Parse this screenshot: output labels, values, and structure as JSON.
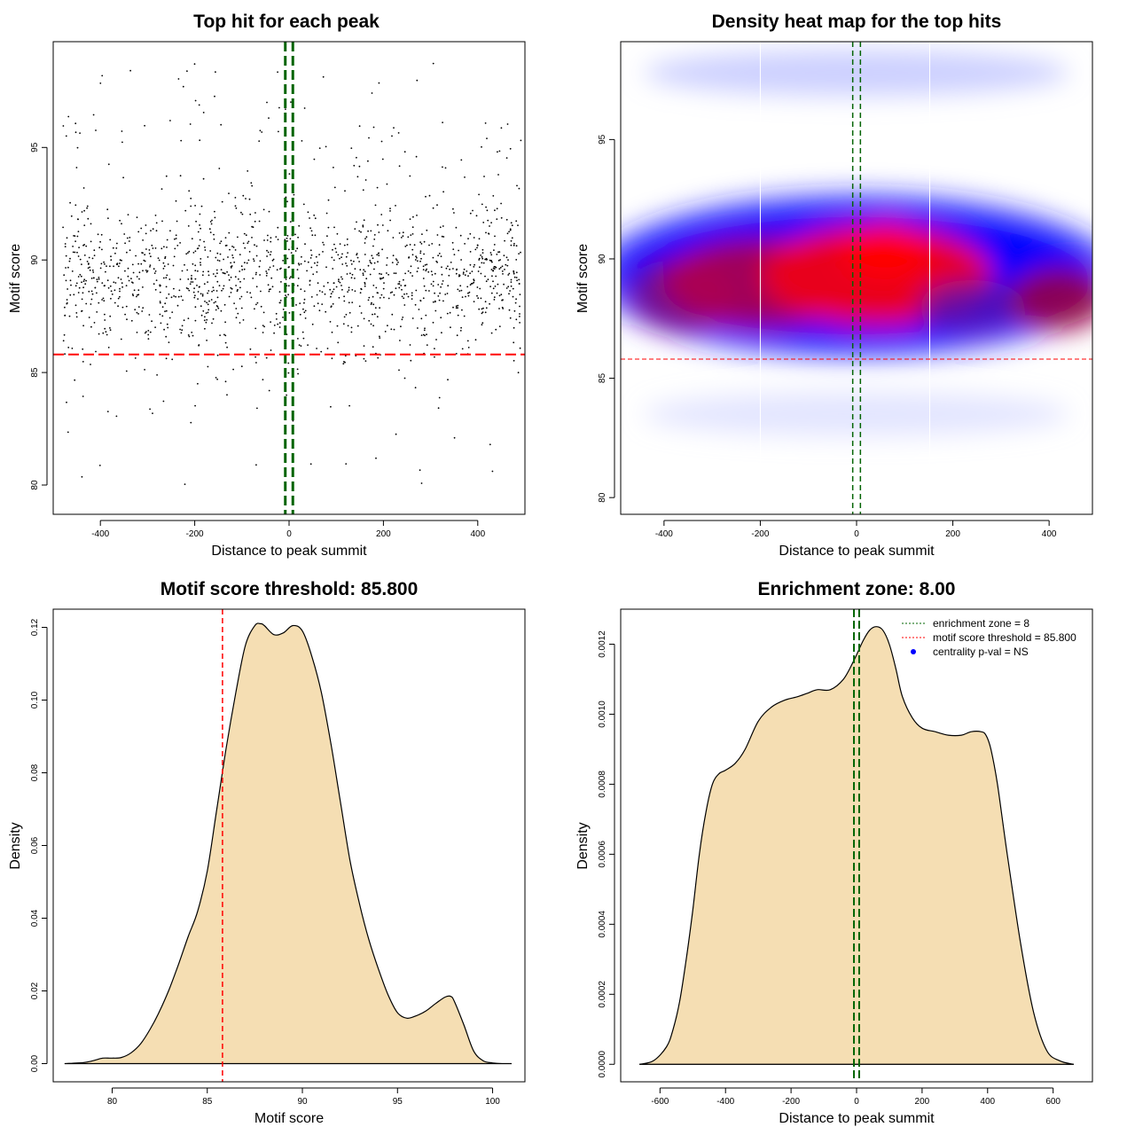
{
  "chart_data": [
    {
      "type": "scatter",
      "title": "Top hit for each peak",
      "xlabel": "Distance to peak summit",
      "ylabel": "Motif score",
      "xlim": [
        -500,
        500
      ],
      "ylim": [
        78.7,
        99.7
      ],
      "xticks": [
        -400,
        -200,
        0,
        200,
        400
      ],
      "yticks": [
        80,
        85,
        90,
        95
      ],
      "vlines": [
        -8,
        8
      ],
      "hline": 85.8,
      "n_points_approx": 1500,
      "colors": {
        "points": "#000000",
        "vlines": "#006400",
        "hline": "#ff0000"
      }
    },
    {
      "type": "heatmap",
      "title": "Density heat map for the top hits",
      "xlabel": "Distance to peak summit",
      "ylabel": "Motif score",
      "xlim": [
        -490,
        490
      ],
      "ylim": [
        79.3,
        99.1
      ],
      "xticks": [
        -400,
        -200,
        0,
        200,
        400
      ],
      "yticks": [
        80,
        85,
        90,
        95
      ],
      "vlines": [
        -8,
        8
      ],
      "hline": 85.8,
      "white_vlines": [
        -200,
        152
      ],
      "colors": {
        "low": "#ffffff",
        "mid": "#0000ff",
        "high": "#ff0000",
        "vlines": "#006400",
        "hline": "#ff0000"
      }
    },
    {
      "type": "area",
      "title": "Motif score threshold: 85.800",
      "xlabel": "Motif score",
      "ylabel": "Density",
      "xlim": [
        76.9,
        101.7
      ],
      "ylim": [
        -0.005,
        0.125
      ],
      "xticks": [
        80,
        85,
        90,
        95,
        100
      ],
      "yticks": [
        0.0,
        0.02,
        0.04,
        0.06,
        0.08,
        0.1,
        0.12
      ],
      "ytick_labels": [
        "0.00",
        "0.02",
        "0.04",
        "0.06",
        "0.08",
        "0.10",
        "0.12"
      ],
      "x": [
        77.5,
        78.5,
        79.0,
        79.5,
        80.0,
        80.5,
        81.0,
        81.5,
        82.0,
        82.5,
        83.0,
        83.5,
        84.0,
        84.5,
        85.0,
        85.5,
        86.0,
        86.5,
        87.0,
        87.5,
        87.8,
        88.0,
        88.5,
        89.0,
        89.5,
        90.0,
        90.5,
        91.0,
        91.5,
        92.0,
        92.5,
        93.0,
        93.5,
        94.0,
        94.5,
        95.0,
        95.5,
        96.0,
        96.5,
        97.0,
        97.5,
        97.8,
        98.0,
        98.5,
        99.0,
        99.5,
        100.0,
        100.5,
        101.0
      ],
      "y": [
        0.0,
        0.0003,
        0.0008,
        0.0015,
        0.0015,
        0.0017,
        0.003,
        0.0055,
        0.0095,
        0.0145,
        0.0205,
        0.0275,
        0.035,
        0.042,
        0.053,
        0.07,
        0.087,
        0.102,
        0.115,
        0.1205,
        0.121,
        0.1205,
        0.118,
        0.1185,
        0.1205,
        0.119,
        0.112,
        0.102,
        0.088,
        0.072,
        0.056,
        0.044,
        0.034,
        0.026,
        0.019,
        0.014,
        0.0125,
        0.0132,
        0.0145,
        0.0165,
        0.0183,
        0.0185,
        0.017,
        0.0105,
        0.0035,
        0.0008,
        0.0002,
        0.0,
        0.0
      ],
      "vline": 85.8,
      "colors": {
        "fill": "#f5deb3",
        "line": "#000000",
        "vline": "#ff0000"
      }
    },
    {
      "type": "area",
      "title": "Enrichment zone: 8.00",
      "xlabel": "Distance to peak summit",
      "ylabel": "Density",
      "xlim": [
        -720,
        720
      ],
      "ylim": [
        -5e-05,
        0.0013
      ],
      "xticks": [
        -600,
        -400,
        -200,
        0,
        200,
        400,
        600
      ],
      "yticks": [
        0.0,
        0.0002,
        0.0004,
        0.0006,
        0.0008,
        0.001,
        0.0012
      ],
      "ytick_labels": [
        "0.0000",
        "0.0002",
        "0.0004",
        "0.0006",
        "0.0008",
        "0.0010",
        "0.0012"
      ],
      "x": [
        -663,
        -620,
        -580,
        -560,
        -540,
        -520,
        -500,
        -480,
        -460,
        -440,
        -420,
        -400,
        -370,
        -340,
        -300,
        -260,
        -220,
        -180,
        -150,
        -120,
        -80,
        -40,
        -10,
        20,
        40,
        60,
        80,
        100,
        120,
        140,
        170,
        200,
        240,
        280,
        320,
        350,
        380,
        395,
        410,
        430,
        460,
        500,
        540,
        580,
        620,
        663
      ],
      "y": [
        0.0,
        1e-05,
        5e-05,
        0.0001,
        0.00018,
        0.0003,
        0.00044,
        0.0006,
        0.00072,
        0.0008,
        0.00083,
        0.00084,
        0.00086,
        0.0009,
        0.00098,
        0.00102,
        0.00104,
        0.00105,
        0.00106,
        0.00107,
        0.00107,
        0.0011,
        0.00115,
        0.00121,
        0.00124,
        0.00125,
        0.00124,
        0.0012,
        0.00113,
        0.00105,
        0.00099,
        0.00096,
        0.00095,
        0.00094,
        0.00094,
        0.00095,
        0.00095,
        0.00094,
        0.0009,
        0.0008,
        0.0006,
        0.00035,
        0.00015,
        4e-05,
        1e-05,
        0.0
      ],
      "vlines": [
        -8,
        8
      ],
      "legend": {
        "position": "top-right",
        "entries": [
          {
            "label": "enrichment zone = 8",
            "color": "#006400",
            "style": "dotted-line"
          },
          {
            "label": "motif score threshold = 85.800",
            "color": "#ff0000",
            "style": "dotted-line"
          },
          {
            "label": "centrality p-val = NS",
            "color": "#0000ff",
            "style": "point"
          }
        ]
      },
      "colors": {
        "fill": "#f5deb3",
        "line": "#000000",
        "vlines": "#006400"
      }
    }
  ]
}
